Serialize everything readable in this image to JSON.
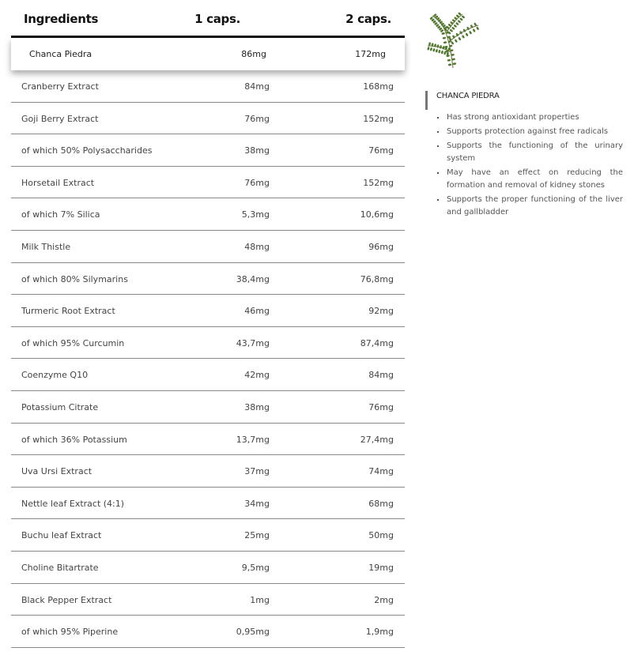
{
  "table": {
    "headers": {
      "name": "Ingredients",
      "col1": "1 caps.",
      "col2": "2 caps."
    },
    "highlighted": {
      "name": "Chanca Piedra",
      "col1": "86mg",
      "col2": "172mg"
    },
    "rows": [
      {
        "name": "Cranberry Extract",
        "col1": "84mg",
        "col2": "168mg"
      },
      {
        "name": "Goji Berry Extract",
        "col1": "76mg",
        "col2": "152mg"
      },
      {
        "name": "of which 50% Polysaccharides",
        "col1": "38mg",
        "col2": "76mg"
      },
      {
        "name": "Horsetail Extract",
        "col1": "76mg",
        "col2": "152mg"
      },
      {
        "name": "of which 7% Silica",
        "col1": "5,3mg",
        "col2": "10,6mg"
      },
      {
        "name": "Milk Thistle",
        "col1": "48mg",
        "col2": "96mg"
      },
      {
        "name": "of which 80% Silymarins",
        "col1": "38,4mg",
        "col2": "76,8mg"
      },
      {
        "name": "Turmeric Root Extract",
        "col1": "46mg",
        "col2": "92mg"
      },
      {
        "name": "of which 95% Curcumin",
        "col1": "43,7mg",
        "col2": "87,4mg"
      },
      {
        "name": "Coenzyme Q10",
        "col1": "42mg",
        "col2": "84mg"
      },
      {
        "name": "Potassium Citrate",
        "col1": "38mg",
        "col2": "76mg"
      },
      {
        "name": "of which 36% Potassium",
        "col1": "13,7mg",
        "col2": "27,4mg"
      },
      {
        "name": "Uva Ursi Extract",
        "col1": "37mg",
        "col2": "74mg"
      },
      {
        "name": "Nettle leaf Extract (4:1)",
        "col1": "34mg",
        "col2": "68mg"
      },
      {
        "name": "Buchu leaf Extract",
        "col1": "25mg",
        "col2": "50mg"
      },
      {
        "name": "Choline Bitartrate",
        "col1": "9,5mg",
        "col2": "19mg"
      },
      {
        "name": "Black Pepper Extract",
        "col1": "1mg",
        "col2": "2mg"
      },
      {
        "name": "of which 95% Piperine",
        "col1": "0,95mg",
        "col2": "1,9mg"
      }
    ]
  },
  "info": {
    "image_icon": "chanca-piedra-plant",
    "title": "CHANCA PIEDRA",
    "benefits": [
      "Has strong antioxidant properties",
      "Supports protection against free radicals",
      "Supports the functioning of the urinary system",
      "May have an effect on reducing the formation and removal of kidney stones",
      "Supports the proper functioning of the liver and gallbladder"
    ]
  }
}
